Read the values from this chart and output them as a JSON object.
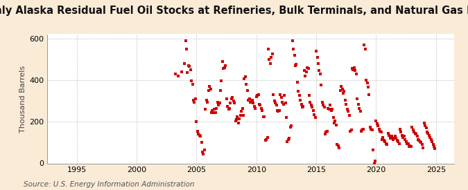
{
  "title": "Monthly Alaska Residual Fuel Oil Stocks at Refineries, Bulk Terminals, and Natural Gas Plants",
  "ylabel": "Thousand Barrels",
  "source": "Source: U.S. Energy Information Administration",
  "background_color": "#faebd7",
  "plot_bg_color": "#ffffff",
  "marker_color": "#cc0000",
  "grid_color": "#aaaaaa",
  "xlim": [
    1992.5,
    2026.5
  ],
  "ylim": [
    0,
    620
  ],
  "yticks": [
    0,
    200,
    400,
    600
  ],
  "xticks": [
    1995,
    2000,
    2005,
    2010,
    2015,
    2020,
    2025
  ],
  "title_fontsize": 10.5,
  "ylabel_fontsize": 8,
  "source_fontsize": 7.5,
  "data": [
    [
      2003.25,
      430
    ],
    [
      2003.5,
      420
    ],
    [
      2003.75,
      440
    ],
    [
      2004.0,
      480
    ],
    [
      2004.08,
      590
    ],
    [
      2004.17,
      550
    ],
    [
      2004.25,
      435
    ],
    [
      2004.33,
      470
    ],
    [
      2004.42,
      465
    ],
    [
      2004.5,
      450
    ],
    [
      2004.58,
      395
    ],
    [
      2004.67,
      380
    ],
    [
      2004.75,
      305
    ],
    [
      2004.83,
      295
    ],
    [
      2004.92,
      310
    ],
    [
      2005.0,
      200
    ],
    [
      2005.08,
      155
    ],
    [
      2005.17,
      140
    ],
    [
      2005.25,
      135
    ],
    [
      2005.33,
      130
    ],
    [
      2005.42,
      100
    ],
    [
      2005.5,
      55
    ],
    [
      2005.58,
      45
    ],
    [
      2005.67,
      65
    ],
    [
      2005.75,
      260
    ],
    [
      2005.83,
      305
    ],
    [
      2005.92,
      295
    ],
    [
      2006.0,
      350
    ],
    [
      2006.08,
      370
    ],
    [
      2006.17,
      355
    ],
    [
      2006.25,
      245
    ],
    [
      2006.33,
      255
    ],
    [
      2006.42,
      245
    ],
    [
      2006.5,
      260
    ],
    [
      2006.58,
      245
    ],
    [
      2006.67,
      265
    ],
    [
      2006.75,
      295
    ],
    [
      2006.83,
      280
    ],
    [
      2006.92,
      290
    ],
    [
      2007.0,
      350
    ],
    [
      2007.08,
      395
    ],
    [
      2007.17,
      490
    ],
    [
      2007.25,
      455
    ],
    [
      2007.33,
      460
    ],
    [
      2007.42,
      470
    ],
    [
      2007.5,
      310
    ],
    [
      2007.58,
      275
    ],
    [
      2007.67,
      260
    ],
    [
      2007.75,
      265
    ],
    [
      2007.83,
      290
    ],
    [
      2007.92,
      310
    ],
    [
      2008.0,
      315
    ],
    [
      2008.08,
      300
    ],
    [
      2008.17,
      290
    ],
    [
      2008.25,
      205
    ],
    [
      2008.33,
      210
    ],
    [
      2008.42,
      225
    ],
    [
      2008.5,
      195
    ],
    [
      2008.58,
      215
    ],
    [
      2008.67,
      230
    ],
    [
      2008.75,
      250
    ],
    [
      2008.83,
      265
    ],
    [
      2008.92,
      230
    ],
    [
      2009.0,
      405
    ],
    [
      2009.08,
      415
    ],
    [
      2009.17,
      380
    ],
    [
      2009.25,
      350
    ],
    [
      2009.33,
      305
    ],
    [
      2009.42,
      310
    ],
    [
      2009.5,
      295
    ],
    [
      2009.58,
      300
    ],
    [
      2009.67,
      305
    ],
    [
      2009.75,
      290
    ],
    [
      2009.83,
      275
    ],
    [
      2009.92,
      265
    ],
    [
      2010.0,
      320
    ],
    [
      2010.08,
      325
    ],
    [
      2010.17,
      330
    ],
    [
      2010.25,
      285
    ],
    [
      2010.33,
      280
    ],
    [
      2010.42,
      265
    ],
    [
      2010.5,
      255
    ],
    [
      2010.58,
      225
    ],
    [
      2010.67,
      225
    ],
    [
      2010.75,
      110
    ],
    [
      2010.83,
      115
    ],
    [
      2010.92,
      125
    ],
    [
      2011.0,
      550
    ],
    [
      2011.08,
      500
    ],
    [
      2011.17,
      480
    ],
    [
      2011.25,
      510
    ],
    [
      2011.33,
      525
    ],
    [
      2011.42,
      330
    ],
    [
      2011.5,
      300
    ],
    [
      2011.58,
      290
    ],
    [
      2011.67,
      280
    ],
    [
      2011.75,
      255
    ],
    [
      2011.83,
      250
    ],
    [
      2011.92,
      255
    ],
    [
      2012.0,
      330
    ],
    [
      2012.08,
      315
    ],
    [
      2012.17,
      295
    ],
    [
      2012.25,
      285
    ],
    [
      2012.33,
      325
    ],
    [
      2012.42,
      290
    ],
    [
      2012.5,
      220
    ],
    [
      2012.58,
      105
    ],
    [
      2012.67,
      115
    ],
    [
      2012.75,
      120
    ],
    [
      2012.83,
      175
    ],
    [
      2012.92,
      180
    ],
    [
      2013.0,
      590
    ],
    [
      2013.08,
      550
    ],
    [
      2013.17,
      520
    ],
    [
      2013.25,
      470
    ],
    [
      2013.33,
      475
    ],
    [
      2013.42,
      390
    ],
    [
      2013.5,
      345
    ],
    [
      2013.58,
      325
    ],
    [
      2013.67,
      305
    ],
    [
      2013.75,
      285
    ],
    [
      2013.83,
      270
    ],
    [
      2013.92,
      275
    ],
    [
      2014.0,
      445
    ],
    [
      2014.08,
      420
    ],
    [
      2014.17,
      440
    ],
    [
      2014.25,
      460
    ],
    [
      2014.33,
      455
    ],
    [
      2014.42,
      325
    ],
    [
      2014.5,
      295
    ],
    [
      2014.58,
      280
    ],
    [
      2014.67,
      270
    ],
    [
      2014.75,
      255
    ],
    [
      2014.83,
      235
    ],
    [
      2014.92,
      220
    ],
    [
      2015.0,
      540
    ],
    [
      2015.08,
      510
    ],
    [
      2015.17,
      480
    ],
    [
      2015.25,
      445
    ],
    [
      2015.33,
      430
    ],
    [
      2015.42,
      375
    ],
    [
      2015.5,
      295
    ],
    [
      2015.58,
      280
    ],
    [
      2015.67,
      270
    ],
    [
      2015.75,
      140
    ],
    [
      2015.83,
      150
    ],
    [
      2015.92,
      155
    ],
    [
      2016.0,
      265
    ],
    [
      2016.08,
      260
    ],
    [
      2016.17,
      280
    ],
    [
      2016.25,
      255
    ],
    [
      2016.33,
      260
    ],
    [
      2016.42,
      220
    ],
    [
      2016.5,
      195
    ],
    [
      2016.58,
      205
    ],
    [
      2016.67,
      185
    ],
    [
      2016.75,
      90
    ],
    [
      2016.83,
      85
    ],
    [
      2016.92,
      75
    ],
    [
      2017.0,
      350
    ],
    [
      2017.08,
      370
    ],
    [
      2017.17,
      355
    ],
    [
      2017.25,
      335
    ],
    [
      2017.33,
      345
    ],
    [
      2017.42,
      305
    ],
    [
      2017.5,
      285
    ],
    [
      2017.58,
      260
    ],
    [
      2017.67,
      250
    ],
    [
      2017.75,
      230
    ],
    [
      2017.83,
      155
    ],
    [
      2017.92,
      160
    ],
    [
      2018.0,
      455
    ],
    [
      2018.08,
      450
    ],
    [
      2018.17,
      460
    ],
    [
      2018.25,
      445
    ],
    [
      2018.33,
      430
    ],
    [
      2018.42,
      310
    ],
    [
      2018.5,
      285
    ],
    [
      2018.58,
      265
    ],
    [
      2018.67,
      250
    ],
    [
      2018.75,
      155
    ],
    [
      2018.83,
      160
    ],
    [
      2018.92,
      165
    ],
    [
      2019.0,
      570
    ],
    [
      2019.08,
      550
    ],
    [
      2019.17,
      400
    ],
    [
      2019.25,
      385
    ],
    [
      2019.33,
      365
    ],
    [
      2019.42,
      330
    ],
    [
      2019.5,
      175
    ],
    [
      2019.58,
      165
    ],
    [
      2019.67,
      160
    ],
    [
      2019.75,
      65
    ],
    [
      2019.83,
      0
    ],
    [
      2019.92,
      10
    ],
    [
      2020.0,
      205
    ],
    [
      2020.08,
      190
    ],
    [
      2020.17,
      180
    ],
    [
      2020.25,
      165
    ],
    [
      2020.33,
      155
    ],
    [
      2020.42,
      150
    ],
    [
      2020.5,
      115
    ],
    [
      2020.58,
      125
    ],
    [
      2020.67,
      110
    ],
    [
      2020.75,
      105
    ],
    [
      2020.83,
      95
    ],
    [
      2020.92,
      90
    ],
    [
      2021.0,
      145
    ],
    [
      2021.08,
      135
    ],
    [
      2021.17,
      120
    ],
    [
      2021.25,
      125
    ],
    [
      2021.33,
      130
    ],
    [
      2021.42,
      115
    ],
    [
      2021.5,
      120
    ],
    [
      2021.58,
      130
    ],
    [
      2021.67,
      120
    ],
    [
      2021.75,
      110
    ],
    [
      2021.83,
      105
    ],
    [
      2021.92,
      95
    ],
    [
      2022.0,
      165
    ],
    [
      2022.08,
      150
    ],
    [
      2022.17,
      135
    ],
    [
      2022.25,
      125
    ],
    [
      2022.33,
      130
    ],
    [
      2022.42,
      115
    ],
    [
      2022.5,
      105
    ],
    [
      2022.58,
      95
    ],
    [
      2022.67,
      95
    ],
    [
      2022.75,
      80
    ],
    [
      2022.83,
      85
    ],
    [
      2022.92,
      80
    ],
    [
      2023.0,
      175
    ],
    [
      2023.08,
      160
    ],
    [
      2023.17,
      150
    ],
    [
      2023.25,
      145
    ],
    [
      2023.33,
      140
    ],
    [
      2023.42,
      130
    ],
    [
      2023.5,
      115
    ],
    [
      2023.58,
      110
    ],
    [
      2023.67,
      105
    ],
    [
      2023.75,
      100
    ],
    [
      2023.83,
      90
    ],
    [
      2023.92,
      75
    ],
    [
      2024.0,
      195
    ],
    [
      2024.08,
      180
    ],
    [
      2024.17,
      170
    ],
    [
      2024.25,
      150
    ],
    [
      2024.33,
      145
    ],
    [
      2024.42,
      135
    ],
    [
      2024.5,
      125
    ],
    [
      2024.58,
      115
    ],
    [
      2024.67,
      105
    ],
    [
      2024.75,
      90
    ],
    [
      2024.83,
      80
    ],
    [
      2024.92,
      70
    ]
  ]
}
